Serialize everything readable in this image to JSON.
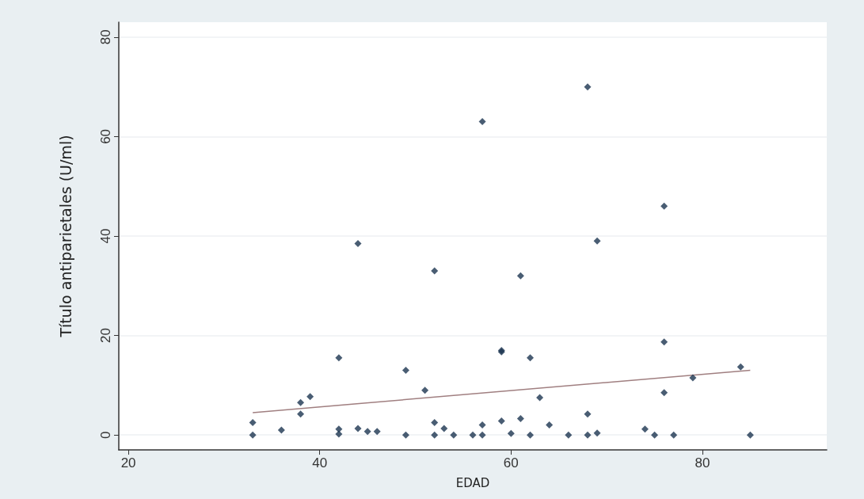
{
  "chart_data": {
    "type": "scatter",
    "xlabel": "EDAD",
    "ylabel": "Título antiparietales (U/ml)",
    "xlim": [
      19,
      93
    ],
    "ylim": [
      -3,
      83
    ],
    "xticks": [
      20,
      40,
      60,
      80
    ],
    "yticks": [
      0,
      20,
      40,
      60,
      80
    ],
    "grid": "y",
    "marker": "diamond",
    "series": [
      {
        "color": "#1c3550",
        "x": [
          33,
          33,
          36,
          38,
          38,
          39,
          42,
          42,
          42,
          44,
          44,
          45,
          46,
          49,
          49,
          51,
          52,
          52,
          52,
          53,
          54,
          56,
          57,
          57,
          57,
          59,
          59,
          59,
          60,
          61,
          61,
          62,
          62,
          63,
          64,
          66,
          68,
          68,
          68,
          69,
          69,
          74,
          75,
          76,
          76,
          76,
          77,
          79,
          84,
          85
        ],
        "values": [
          2.5,
          0,
          1,
          6.5,
          4.2,
          7.7,
          15.5,
          1.2,
          0.2,
          38.5,
          1.3,
          0.7,
          0.7,
          13,
          0,
          9,
          33,
          2.5,
          0,
          1.3,
          0,
          0,
          63,
          2,
          0,
          17,
          16.7,
          2.8,
          0.3,
          32,
          3.3,
          15.5,
          0,
          7.5,
          2,
          0,
          70,
          4.2,
          0,
          39,
          0.4,
          1.2,
          0,
          46,
          18.7,
          8.5,
          0,
          11.5,
          13.7,
          0
        ]
      },
      {
        "type": "line",
        "color": "#a07f80",
        "x": [
          33,
          85
        ],
        "values": [
          4.5,
          13
        ],
        "marker": "none",
        "line_style": "solid"
      }
    ]
  }
}
